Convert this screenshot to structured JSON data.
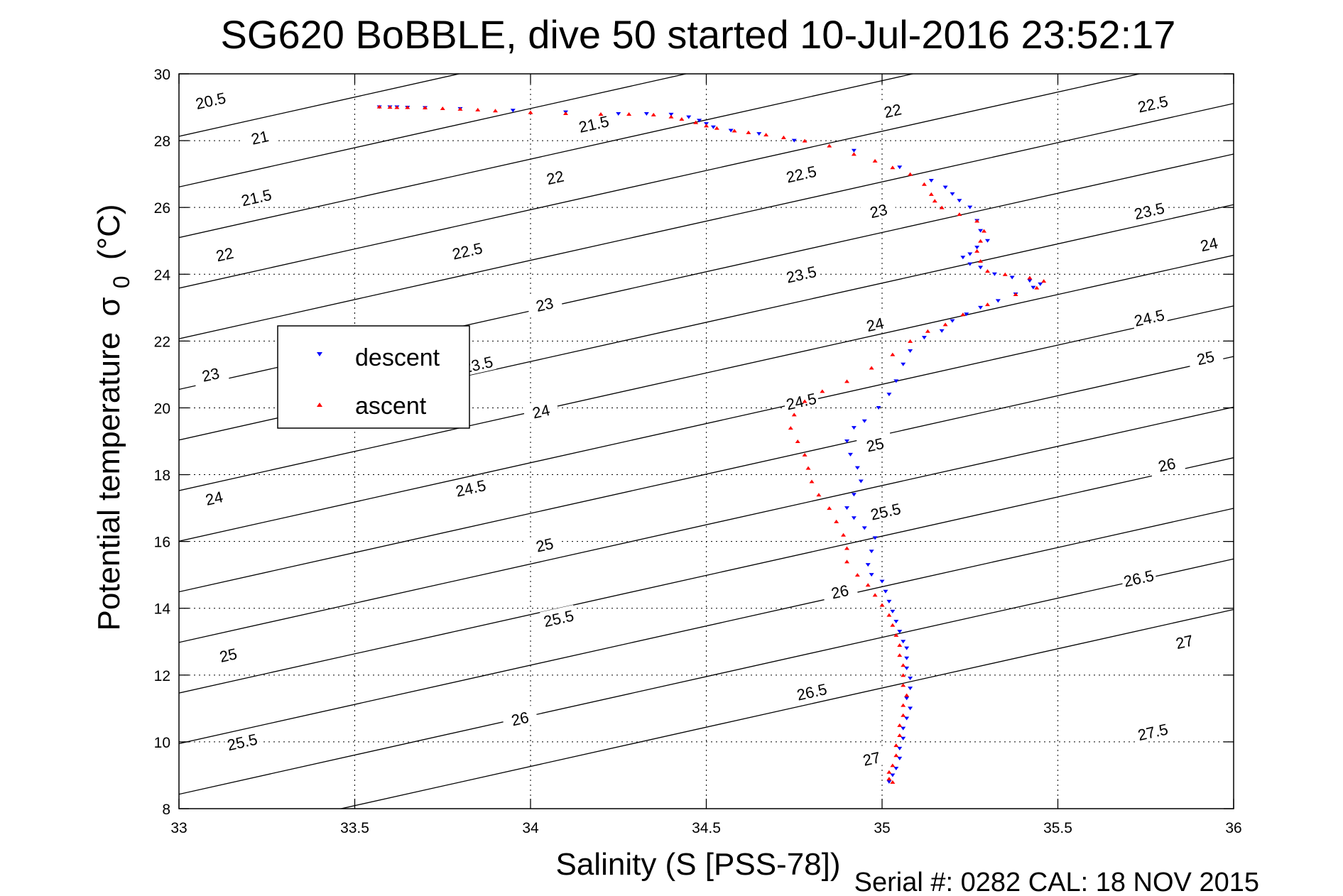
{
  "chart_data": {
    "type": "scatter",
    "title": "SG620 BoBBLE, dive 50 started 10-Jul-2016 23:52:17",
    "xlabel": "Salinity (S [PSS-78])",
    "ylabel": "Potential temperature",
    "ylabel_symbol": "σ",
    "ylabel_subscript": "0",
    "ylabel_unit": "(°C)",
    "xlim": [
      33,
      36
    ],
    "ylim": [
      8,
      30
    ],
    "x_ticks": [
      "33",
      "33.5",
      "34",
      "34.5",
      "35",
      "35.5",
      "36"
    ],
    "y_ticks": [
      "8",
      "10",
      "12",
      "14",
      "16",
      "18",
      "20",
      "22",
      "24",
      "26",
      "28",
      "30"
    ],
    "grid": true,
    "legend_position": "middle-left",
    "footer": "Serial #: 0282  CAL: 18 NOV 2015",
    "colors": {
      "descent": "#0000ff",
      "ascent": "#ff0000",
      "contour": "#000000"
    },
    "contours": [
      {
        "sigma": 20.5,
        "label": "20.5"
      },
      {
        "sigma": 21,
        "label": "21"
      },
      {
        "sigma": 21.5,
        "label": "21.5"
      },
      {
        "sigma": 22,
        "label": "22"
      },
      {
        "sigma": 22.5,
        "label": "22.5"
      },
      {
        "sigma": 23,
        "label": "23"
      },
      {
        "sigma": 23.5,
        "label": "23.5"
      },
      {
        "sigma": 24,
        "label": "24"
      },
      {
        "sigma": 24.5,
        "label": "24.5"
      },
      {
        "sigma": 25,
        "label": "25"
      },
      {
        "sigma": 25.5,
        "label": "25.5"
      },
      {
        "sigma": 26,
        "label": "26"
      },
      {
        "sigma": 26.5,
        "label": "26.5"
      },
      {
        "sigma": 27,
        "label": "27"
      },
      {
        "sigma": 27.5,
        "label": "27.5"
      }
    ],
    "contour_labels": [
      {
        "label": "20.5",
        "x": 33.09,
        "y": 29.2
      },
      {
        "label": "21",
        "x": 33.23,
        "y": 28.1
      },
      {
        "label": "21.5",
        "x": 33.22,
        "y": 26.3
      },
      {
        "label": "22",
        "x": 33.13,
        "y": 24.6
      },
      {
        "label": "23",
        "x": 33.09,
        "y": 21.0
      },
      {
        "label": "24",
        "x": 33.1,
        "y": 17.3
      },
      {
        "label": "25",
        "x": 33.14,
        "y": 12.6
      },
      {
        "label": "25.5",
        "x": 33.18,
        "y": 10.0
      },
      {
        "label": "21.5",
        "x": 34.18,
        "y": 28.5
      },
      {
        "label": "22",
        "x": 34.07,
        "y": 26.9
      },
      {
        "label": "22.5",
        "x": 33.82,
        "y": 24.7
      },
      {
        "label": "23",
        "x": 34.04,
        "y": 23.1
      },
      {
        "label": "23.5",
        "x": 33.85,
        "y": 21.3
      },
      {
        "label": "24",
        "x": 34.03,
        "y": 19.9
      },
      {
        "label": "24.5",
        "x": 33.83,
        "y": 17.6
      },
      {
        "label": "25",
        "x": 34.04,
        "y": 15.9
      },
      {
        "label": "25.5",
        "x": 34.08,
        "y": 13.7
      },
      {
        "label": "26",
        "x": 33.97,
        "y": 10.7
      },
      {
        "label": "22",
        "x": 35.03,
        "y": 28.9
      },
      {
        "label": "22.5",
        "x": 34.77,
        "y": 27.0
      },
      {
        "label": "23",
        "x": 34.99,
        "y": 25.9
      },
      {
        "label": "23.5",
        "x": 34.77,
        "y": 24.0
      },
      {
        "label": "24",
        "x": 34.98,
        "y": 22.5
      },
      {
        "label": "24.5",
        "x": 34.77,
        "y": 20.2
      },
      {
        "label": "25",
        "x": 34.98,
        "y": 18.9
      },
      {
        "label": "25.5",
        "x": 35.01,
        "y": 16.9
      },
      {
        "label": "26",
        "x": 34.88,
        "y": 14.5
      },
      {
        "label": "26.5",
        "x": 34.8,
        "y": 11.5
      },
      {
        "label": "27",
        "x": 34.97,
        "y": 9.5
      },
      {
        "label": "22.5",
        "x": 35.77,
        "y": 29.1
      },
      {
        "label": "23.5",
        "x": 35.76,
        "y": 25.9
      },
      {
        "label": "24",
        "x": 35.93,
        "y": 24.9
      },
      {
        "label": "24.5",
        "x": 35.76,
        "y": 22.7
      },
      {
        "label": "25",
        "x": 35.92,
        "y": 21.5
      },
      {
        "label": "26",
        "x": 35.81,
        "y": 18.3
      },
      {
        "label": "26.5",
        "x": 35.73,
        "y": 14.9
      },
      {
        "label": "27",
        "x": 35.86,
        "y": 13.0
      },
      {
        "label": "27.5",
        "x": 35.77,
        "y": 10.3
      }
    ],
    "series": [
      {
        "name": "descent",
        "marker": "triangle-down",
        "color": "#0000ff",
        "points": [
          [
            33.57,
            29.0
          ],
          [
            33.6,
            29.0
          ],
          [
            33.62,
            29.0
          ],
          [
            33.65,
            28.99
          ],
          [
            33.7,
            28.98
          ],
          [
            33.8,
            28.95
          ],
          [
            33.95,
            28.9
          ],
          [
            34.1,
            28.85
          ],
          [
            34.25,
            28.8
          ],
          [
            34.33,
            28.8
          ],
          [
            34.4,
            28.78
          ],
          [
            34.45,
            28.7
          ],
          [
            34.48,
            28.6
          ],
          [
            34.5,
            28.5
          ],
          [
            34.52,
            28.4
          ],
          [
            34.57,
            28.3
          ],
          [
            34.65,
            28.2
          ],
          [
            34.75,
            28.0
          ],
          [
            34.92,
            27.7
          ],
          [
            35.05,
            27.2
          ],
          [
            35.14,
            26.8
          ],
          [
            35.18,
            26.6
          ],
          [
            35.2,
            26.4
          ],
          [
            35.22,
            26.2
          ],
          [
            35.25,
            26.0
          ],
          [
            35.27,
            25.6
          ],
          [
            35.28,
            25.3
          ],
          [
            35.3,
            25.0
          ],
          [
            35.27,
            24.8
          ],
          [
            35.25,
            24.6
          ],
          [
            35.23,
            24.5
          ],
          [
            35.25,
            24.3
          ],
          [
            35.28,
            24.2
          ],
          [
            35.32,
            24.0
          ],
          [
            35.37,
            23.9
          ],
          [
            35.42,
            23.8
          ],
          [
            35.45,
            23.7
          ],
          [
            35.43,
            23.6
          ],
          [
            35.38,
            23.4
          ],
          [
            35.33,
            23.2
          ],
          [
            35.28,
            23.0
          ],
          [
            35.24,
            22.8
          ],
          [
            35.2,
            22.6
          ],
          [
            35.17,
            22.3
          ],
          [
            35.12,
            22.1
          ],
          [
            35.08,
            21.7
          ],
          [
            35.06,
            21.3
          ],
          [
            35.04,
            20.8
          ],
          [
            35.02,
            20.4
          ],
          [
            34.99,
            20.0
          ],
          [
            34.95,
            19.6
          ],
          [
            34.92,
            19.4
          ],
          [
            34.9,
            19.0
          ],
          [
            34.91,
            18.6
          ],
          [
            34.93,
            18.2
          ],
          [
            34.94,
            17.8
          ],
          [
            34.92,
            17.4
          ],
          [
            34.9,
            17.0
          ],
          [
            34.92,
            16.7
          ],
          [
            34.95,
            16.4
          ],
          [
            34.98,
            16.1
          ],
          [
            34.97,
            15.7
          ],
          [
            34.96,
            15.3
          ],
          [
            34.97,
            15.0
          ],
          [
            35.0,
            14.8
          ],
          [
            35.01,
            14.5
          ],
          [
            35.02,
            14.2
          ],
          [
            35.03,
            13.9
          ],
          [
            35.04,
            13.6
          ],
          [
            35.05,
            13.3
          ],
          [
            35.06,
            13.0
          ],
          [
            35.07,
            12.8
          ],
          [
            35.07,
            12.5
          ],
          [
            35.07,
            12.2
          ],
          [
            35.08,
            11.9
          ],
          [
            35.08,
            11.6
          ],
          [
            35.07,
            11.3
          ],
          [
            35.08,
            11.0
          ],
          [
            35.07,
            10.7
          ],
          [
            35.06,
            10.4
          ],
          [
            35.06,
            10.1
          ],
          [
            35.05,
            9.8
          ],
          [
            35.05,
            9.5
          ],
          [
            35.04,
            9.2
          ],
          [
            35.03,
            9.0
          ],
          [
            35.02,
            8.8
          ]
        ]
      },
      {
        "name": "ascent",
        "marker": "triangle-up",
        "color": "#ff0000",
        "points": [
          [
            33.57,
            29.02
          ],
          [
            33.6,
            29.01
          ],
          [
            33.62,
            29.0
          ],
          [
            33.65,
            29.0
          ],
          [
            33.7,
            28.99
          ],
          [
            33.75,
            28.97
          ],
          [
            33.8,
            28.95
          ],
          [
            33.85,
            28.93
          ],
          [
            33.9,
            28.9
          ],
          [
            34.0,
            28.85
          ],
          [
            34.1,
            28.82
          ],
          [
            34.2,
            28.8
          ],
          [
            34.28,
            28.8
          ],
          [
            34.35,
            28.78
          ],
          [
            34.4,
            28.72
          ],
          [
            34.43,
            28.65
          ],
          [
            34.47,
            28.55
          ],
          [
            34.5,
            28.45
          ],
          [
            34.53,
            28.38
          ],
          [
            34.58,
            28.3
          ],
          [
            34.62,
            28.25
          ],
          [
            34.67,
            28.18
          ],
          [
            34.72,
            28.1
          ],
          [
            34.78,
            28.0
          ],
          [
            34.85,
            27.85
          ],
          [
            34.92,
            27.6
          ],
          [
            34.98,
            27.4
          ],
          [
            35.03,
            27.2
          ],
          [
            35.08,
            27.0
          ],
          [
            35.12,
            26.7
          ],
          [
            35.14,
            26.4
          ],
          [
            35.15,
            26.2
          ],
          [
            35.17,
            26.0
          ],
          [
            35.22,
            25.8
          ],
          [
            35.27,
            25.6
          ],
          [
            35.29,
            25.3
          ],
          [
            35.28,
            25.0
          ],
          [
            35.27,
            24.7
          ],
          [
            35.28,
            24.4
          ],
          [
            35.3,
            24.1
          ],
          [
            35.35,
            24.0
          ],
          [
            35.42,
            23.9
          ],
          [
            35.46,
            23.8
          ],
          [
            35.44,
            23.6
          ],
          [
            35.38,
            23.4
          ],
          [
            35.3,
            23.1
          ],
          [
            35.23,
            22.8
          ],
          [
            35.18,
            22.5
          ],
          [
            35.13,
            22.3
          ],
          [
            35.08,
            22.0
          ],
          [
            35.03,
            21.6
          ],
          [
            34.97,
            21.2
          ],
          [
            34.9,
            20.8
          ],
          [
            34.83,
            20.5
          ],
          [
            34.78,
            20.2
          ],
          [
            34.75,
            19.8
          ],
          [
            34.74,
            19.4
          ],
          [
            34.76,
            19.0
          ],
          [
            34.78,
            18.6
          ],
          [
            34.79,
            18.2
          ],
          [
            34.8,
            17.8
          ],
          [
            34.82,
            17.4
          ],
          [
            34.85,
            17.0
          ],
          [
            34.87,
            16.6
          ],
          [
            34.89,
            16.2
          ],
          [
            34.9,
            15.8
          ],
          [
            34.9,
            15.4
          ],
          [
            34.93,
            15.0
          ],
          [
            34.96,
            14.7
          ],
          [
            34.98,
            14.4
          ],
          [
            35.0,
            14.1
          ],
          [
            35.02,
            13.8
          ],
          [
            35.03,
            13.5
          ],
          [
            35.04,
            13.2
          ],
          [
            35.05,
            12.9
          ],
          [
            35.05,
            12.6
          ],
          [
            35.06,
            12.3
          ],
          [
            35.06,
            12.0
          ],
          [
            35.06,
            11.7
          ],
          [
            35.07,
            11.4
          ],
          [
            35.06,
            11.1
          ],
          [
            35.06,
            10.8
          ],
          [
            35.05,
            10.5
          ],
          [
            35.05,
            10.2
          ],
          [
            35.04,
            9.9
          ],
          [
            35.04,
            9.6
          ],
          [
            35.03,
            9.3
          ],
          [
            35.02,
            9.1
          ],
          [
            35.02,
            8.9
          ],
          [
            35.03,
            8.8
          ]
        ]
      }
    ]
  }
}
